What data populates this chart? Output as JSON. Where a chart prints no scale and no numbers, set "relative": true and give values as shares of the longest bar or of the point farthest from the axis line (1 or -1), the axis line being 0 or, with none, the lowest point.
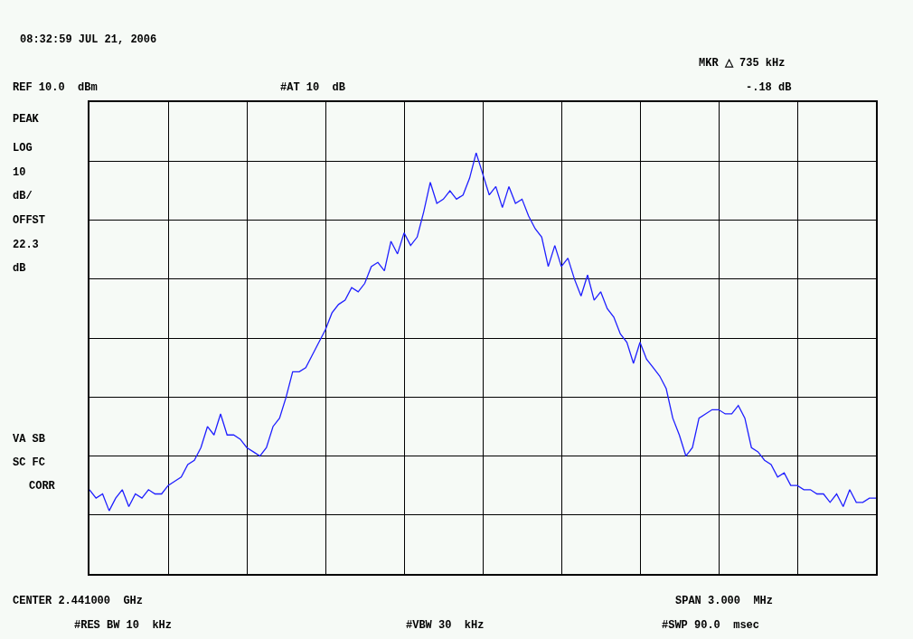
{
  "chart_data": {
    "type": "line",
    "relative": true,
    "grid": true,
    "categories": [
      null,
      null,
      null,
      null,
      null,
      null,
      null,
      null,
      null,
      null,
      null,
      null,
      null,
      null,
      null,
      null,
      null,
      null,
      null,
      null,
      null,
      null,
      null,
      null,
      null,
      null,
      null,
      null,
      null,
      null,
      null,
      null,
      null,
      null,
      null,
      null,
      null,
      null,
      null,
      null,
      null,
      null,
      null,
      null,
      null,
      null,
      null,
      null,
      null,
      null,
      null,
      null,
      null,
      null,
      null,
      null,
      null,
      null,
      null,
      null,
      null,
      null,
      null,
      null,
      null,
      null,
      null,
      null,
      null,
      null,
      null,
      null,
      null,
      null,
      null,
      null,
      null,
      null,
      null,
      null,
      null,
      null,
      null,
      null,
      null,
      null,
      null,
      null,
      null,
      null,
      null,
      null,
      null,
      null,
      null,
      null,
      null,
      null,
      null,
      null,
      null,
      null,
      null,
      null,
      null,
      null,
      null,
      null,
      null,
      null,
      null,
      null,
      null,
      null,
      null,
      null,
      null,
      null,
      null,
      null,
      null
    ],
    "series": [
      {
        "color": "#1f1fff",
        "marker": "none",
        "line_style": "solid",
        "values": [
          0.2,
          0.18,
          0.19,
          0.15,
          0.18,
          0.2,
          0.16,
          0.19,
          0.18,
          0.2,
          0.19,
          0.19,
          0.21,
          0.22,
          0.23,
          0.26,
          0.27,
          0.3,
          0.35,
          0.33,
          0.38,
          0.33,
          0.33,
          0.32,
          0.3,
          0.29,
          0.28,
          0.3,
          0.35,
          0.37,
          0.42,
          0.48,
          0.48,
          0.49,
          0.52,
          0.55,
          0.58,
          0.62,
          0.64,
          0.65,
          0.68,
          0.67,
          0.69,
          0.73,
          0.74,
          0.72,
          0.79,
          0.76,
          0.81,
          0.78,
          0.8,
          0.86,
          0.93,
          0.88,
          0.89,
          0.91,
          0.89,
          0.9,
          0.94,
          1.0,
          0.95,
          0.9,
          0.92,
          0.87,
          0.92,
          0.88,
          0.89,
          0.85,
          0.82,
          0.8,
          0.73,
          0.78,
          0.73,
          0.75,
          0.7,
          0.66,
          0.71,
          0.65,
          0.67,
          0.63,
          0.61,
          0.57,
          0.55,
          0.5,
          0.55,
          0.51,
          0.49,
          0.47,
          0.44,
          0.37,
          0.33,
          0.28,
          0.3,
          0.37,
          0.38,
          0.39,
          0.39,
          0.38,
          0.38,
          0.4,
          0.37,
          0.3,
          0.29,
          0.27,
          0.26,
          0.23,
          0.24,
          0.21,
          0.21,
          0.2,
          0.2,
          0.19,
          0.19,
          0.17,
          0.19,
          0.16,
          0.2,
          0.17,
          0.17,
          0.18,
          0.18
        ]
      }
    ],
    "annotations": [
      "08:32:59 JUL 21, 2006",
      "MKR △ 735 kHz",
      "REF 10.0  dBm",
      "#AT 10  dB",
      "-.18 dB",
      "PEAK",
      "LOG",
      "10",
      "dB/",
      "OFFST",
      "22.3",
      "dB",
      "VA SB",
      "SC FC",
      "CORR",
      "CENTER 2.441000  GHz",
      "SPAN 3.000  MHz",
      "#RES BW 10  kHz",
      "#VBW 30  kHz",
      "#SWP 90.0  msec"
    ]
  }
}
